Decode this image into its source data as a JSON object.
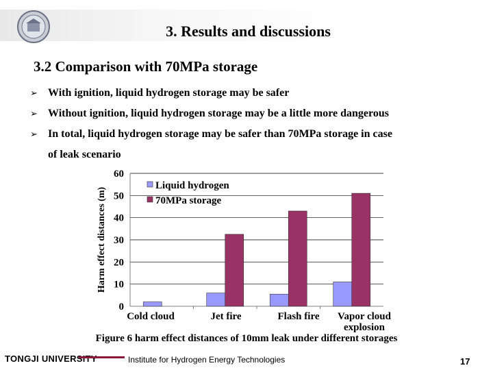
{
  "slide": {
    "title": "3. Results and discussions",
    "section": "3.2 Comparison with 70MPa storage",
    "bullets": [
      "With ignition, liquid hydrogen storage may be safer",
      "Without ignition, liquid hydrogen storage may be a little more dangerous",
      "In total, liquid hydrogen storage may be safer than 70MPa storage in case"
    ],
    "bullet_continuation": "of leak scenario",
    "bullet_icon": "arrow-bullet-icon",
    "caption": "Figure 6 harm effect distances of 10mm leak under different storages",
    "footer": {
      "university": "TONGJI UNIVERSITY",
      "institute": "Institute for Hydrogen Energy Technologies",
      "page": "17"
    }
  },
  "chart_data": {
    "type": "bar",
    "categories": [
      "Cold cloud",
      "Jet fire",
      "Flash fire",
      "Vapor cloud explosion"
    ],
    "series": [
      {
        "name": "Liquid hydrogen",
        "values": [
          2,
          6,
          5.5,
          11
        ],
        "color": "#9999ff"
      },
      {
        "name": "70MPa storage",
        "values": [
          0,
          32.5,
          43,
          51
        ],
        "color": "#993366"
      }
    ],
    "ylabel": "Harm effect distances (m)",
    "ylim": [
      0,
      60
    ],
    "yticks": [
      "0",
      "10",
      "20",
      "30",
      "40",
      "50",
      "60"
    ],
    "grid": true,
    "legend": "top-left"
  }
}
